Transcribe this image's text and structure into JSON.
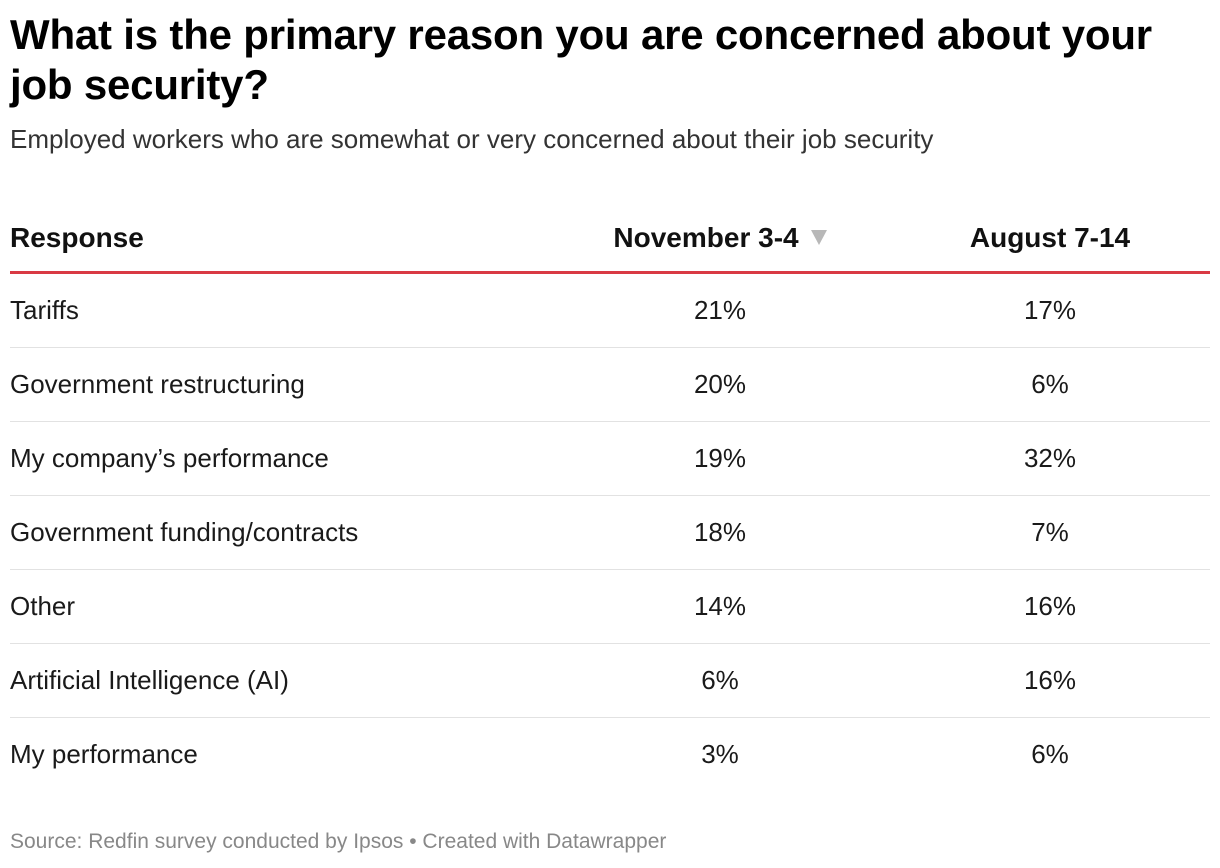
{
  "title": "What is the primary reason you are concerned about your job security?",
  "subtitle": "Employed workers who are somewhat or very concerned about their job security",
  "footer": {
    "source": "Source: Redfin survey conducted by Ipsos",
    "separator": " • ",
    "credit": "Created with Datawrapper"
  },
  "chart_data": {
    "type": "table",
    "title": "What is the primary reason you are concerned about your job security?",
    "subtitle": "Employed workers who are somewhat or very concerned about their job security",
    "columns": [
      "Response",
      "November 3-4",
      "August 7-14"
    ],
    "sorted_by": "November 3-4",
    "sort_direction": "descending",
    "accent_color": "#d93a44",
    "rows": [
      {
        "response": "Tariffs",
        "november": "21%",
        "august": "17%"
      },
      {
        "response": "Government restructuring",
        "november": "20%",
        "august": "6%"
      },
      {
        "response": "My company’s performance",
        "november": "19%",
        "august": "32%"
      },
      {
        "response": "Government funding/contracts",
        "november": "18%",
        "august": "7%"
      },
      {
        "response": "Other",
        "november": "14%",
        "august": "16%"
      },
      {
        "response": "Artificial Intelligence (AI)",
        "november": "6%",
        "august": "16%"
      },
      {
        "response": "My performance",
        "november": "3%",
        "august": "6%"
      }
    ]
  }
}
